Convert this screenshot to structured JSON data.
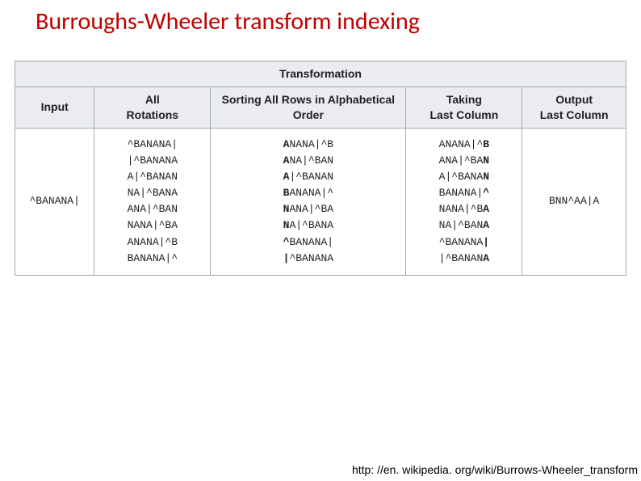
{
  "title": "Burroughs-Wheeler transform indexing",
  "footer": "http: //en. wikipedia. org/wiki/Burrows-Wheeler_transform",
  "table": {
    "super_header": "Transformation",
    "headers": {
      "input": "Input",
      "rotations": "All\nRotations",
      "sorting": "Sorting All Rows in Alphabetical\nOrder",
      "taking": "Taking\nLast Column",
      "output": "Output\nLast Column"
    },
    "input_value": "^BANANA|",
    "rotations_lines": [
      "^BANANA|",
      "|^BANANA",
      "A|^BANAN",
      "NA|^BANA",
      "ANA|^BAN",
      "NANA|^BA",
      "ANANA|^B",
      "BANANA|^"
    ],
    "sorting_lines": [
      {
        "pre": "",
        "b": "A",
        "post": "NANA|^B"
      },
      {
        "pre": "",
        "b": "A",
        "post": "NA|^BAN"
      },
      {
        "pre": "",
        "b": "A",
        "post": "|^BANAN"
      },
      {
        "pre": "",
        "b": "B",
        "post": "ANANA|^"
      },
      {
        "pre": "",
        "b": "N",
        "post": "ANA|^BA"
      },
      {
        "pre": "",
        "b": "N",
        "post": "A|^BANA"
      },
      {
        "pre": "",
        "b": "^",
        "post": "BANANA|"
      },
      {
        "pre": "",
        "b": "|",
        "post": "^BANANA"
      }
    ],
    "taking_lines": [
      {
        "pre": "ANANA|^",
        "b": "B"
      },
      {
        "pre": "ANA|^BA",
        "b": "N"
      },
      {
        "pre": "A|^BANA",
        "b": "N"
      },
      {
        "pre": "BANANA|",
        "b": "^"
      },
      {
        "pre": "NANA|^B",
        "b": "A"
      },
      {
        "pre": "NA|^BAN",
        "b": "A"
      },
      {
        "pre": "^BANANA",
        "b": "|"
      },
      {
        "pre": "|^BANAN",
        "b": "A"
      }
    ],
    "output_value": "BNN^AA|A"
  },
  "colors": {
    "title": "#c00000",
    "border": "#a2a9b1",
    "header_bg": "#eaecf0",
    "cell_bg": "#ffffff"
  }
}
